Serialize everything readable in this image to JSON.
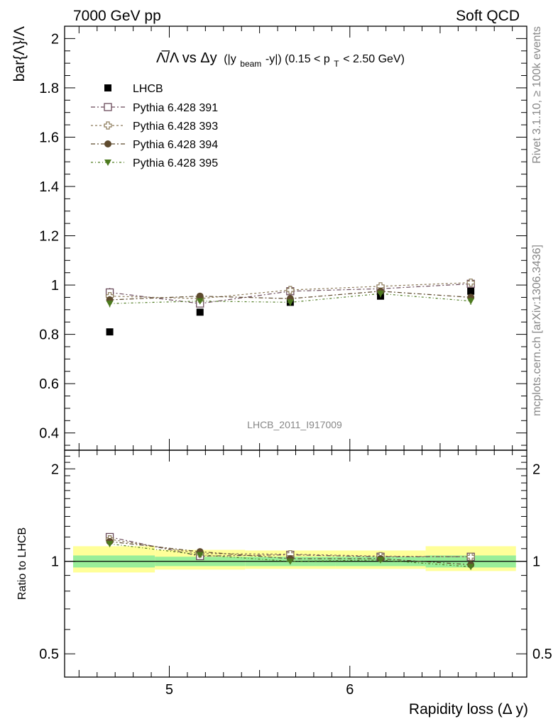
{
  "header": {
    "left": "7000 GeV pp",
    "right": "Soft QCD"
  },
  "side": {
    "rivet": "Rivet 3.1.10, ≥ 100k events",
    "mcplots": "mcplots.cern.ch [arXiv:1306.3436]"
  },
  "chart_data": [
    {
      "type": "scatter",
      "title_main": "Λ̅/Λ vs Δy",
      "title_sub_1": "(|y",
      "title_sub_beam": "beam",
      "title_sub_2": "-y|) (0.15 < p",
      "title_sub_T": "T",
      "title_sub_3": " < 2.50 GeV)",
      "ylabel": "bar{Λ}/Λ",
      "watermark": "LHCB_2011_I917009",
      "xlim": [
        4.42,
        6.98
      ],
      "ylim": [
        0.33,
        2.05
      ],
      "yticks": [
        0.4,
        0.6,
        0.8,
        1,
        1.2,
        1.4,
        1.6,
        1.8,
        2
      ],
      "ytick_labels": [
        "0.4",
        "0.6",
        "0.8",
        "1",
        "1.2",
        "1.4",
        "1.6",
        "1.8",
        "2"
      ],
      "x": [
        4.67,
        5.17,
        5.67,
        6.17,
        6.67
      ],
      "series": [
        {
          "name": "LHCB",
          "values": [
            0.81,
            0.89,
            0.93,
            0.955,
            0.975
          ],
          "color": "#000000",
          "marker": "square-filled"
        },
        {
          "name": "Pythia 6.428 391",
          "values": [
            0.97,
            0.925,
            0.975,
            0.985,
            1.005
          ],
          "errors": [
            0.018,
            0.012,
            0.015,
            0.015,
            0.015
          ],
          "color": "#6b4b5b",
          "marker": "square-open"
        },
        {
          "name": "Pythia 6.428 393",
          "values": [
            0.955,
            0.945,
            0.98,
            0.995,
            1.01
          ],
          "errors": [
            0.015,
            0.012,
            0.015,
            0.015,
            0.015
          ],
          "color": "#8c7b5a",
          "marker": "cross-open"
        },
        {
          "name": "Pythia 6.428 394",
          "values": [
            0.94,
            0.955,
            0.945,
            0.975,
            0.95
          ],
          "errors": [
            0.015,
            0.012,
            0.015,
            0.015,
            0.015
          ],
          "color": "#5e4a2e",
          "marker": "circle-filled"
        },
        {
          "name": "Pythia 6.428 395",
          "values": [
            0.925,
            0.935,
            0.93,
            0.965,
            0.935
          ],
          "errors": [
            0.015,
            0.012,
            0.015,
            0.015,
            0.015
          ],
          "color": "#4d7a1f",
          "marker": "triangle-down-filled"
        }
      ]
    },
    {
      "type": "scatter",
      "ylabel": "Ratio to LHCB",
      "xlabel": "Rapidity loss (Δ y)",
      "xlim": [
        4.42,
        6.98
      ],
      "ylim": [
        0.42,
        2.3
      ],
      "yscale": "log",
      "xticks": [
        5,
        6
      ],
      "xtick_labels": [
        "5",
        "6"
      ],
      "yticks": [
        0.5,
        1,
        2
      ],
      "ytick_labels": [
        "0.5",
        "1",
        "2"
      ],
      "bands": [
        {
          "x0": 4.42,
          "x1": 4.92,
          "inner": [
            0.955,
            1.045
          ],
          "outer": [
            0.92,
            1.12
          ]
        },
        {
          "x0": 4.92,
          "x1": 5.42,
          "inner": [
            0.965,
            1.035
          ],
          "outer": [
            0.94,
            1.09
          ]
        },
        {
          "x0": 5.42,
          "x1": 5.92,
          "inner": [
            0.965,
            1.035
          ],
          "outer": [
            0.945,
            1.085
          ]
        },
        {
          "x0": 5.92,
          "x1": 6.42,
          "inner": [
            0.965,
            1.035
          ],
          "outer": [
            0.945,
            1.085
          ]
        },
        {
          "x0": 6.42,
          "x1": 6.92,
          "inner": [
            0.955,
            1.045
          ],
          "outer": [
            0.93,
            1.12
          ]
        }
      ],
      "band_colors": {
        "inner": "#99ee99",
        "outer": "#ffff99"
      },
      "x": [
        4.67,
        5.17,
        5.67,
        6.17,
        6.67
      ],
      "series": [
        {
          "name": "Pythia 6.428 391",
          "values": [
            1.2,
            1.04,
            1.05,
            1.035,
            1.035
          ]
        },
        {
          "name": "Pythia 6.428 393",
          "values": [
            1.18,
            1.06,
            1.055,
            1.04,
            1.035
          ]
        },
        {
          "name": "Pythia 6.428 394",
          "values": [
            1.16,
            1.075,
            1.02,
            1.02,
            0.975
          ]
        },
        {
          "name": "Pythia 6.428 395",
          "values": [
            1.14,
            1.05,
            1.0,
            1.01,
            0.96
          ]
        }
      ]
    }
  ]
}
